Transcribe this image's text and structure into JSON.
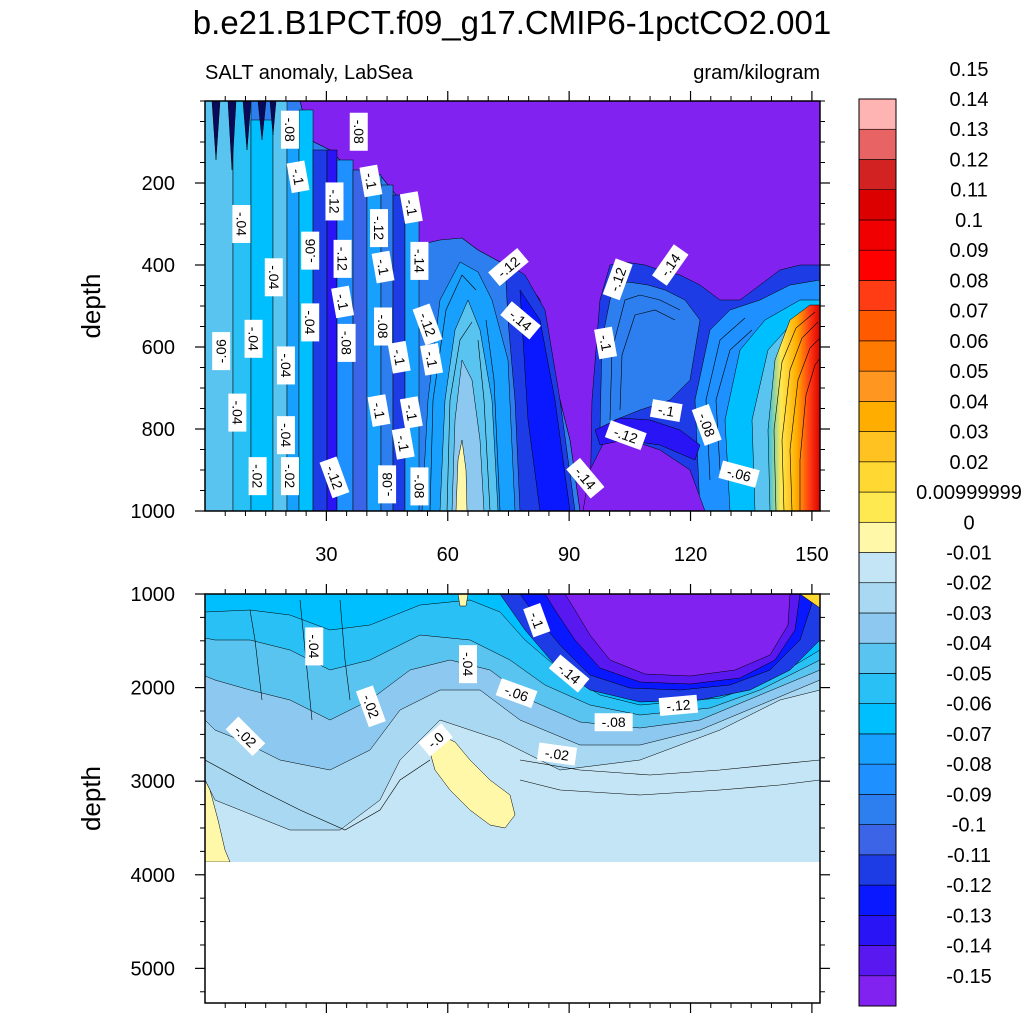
{
  "chart_data": {
    "type": "contour",
    "title": "b.e21.B1PCT.f09_g17.CMIP6-1pctCO2.001",
    "subtitle_left": "SALT anomaly, LabSea",
    "subtitle_right": "gram/kilogram",
    "xlim": [
      0,
      152
    ],
    "x_ticks": [
      30,
      60,
      90,
      120,
      150
    ],
    "x_tick_labels": [
      "30",
      "60",
      "90",
      "120",
      "150"
    ],
    "colors": {
      "frame": "#000000",
      "min_fill": "#8222f0"
    },
    "panels": [
      {
        "name": "upper",
        "ylabel": "depth",
        "ylim": [
          0,
          1000
        ],
        "y_ticks": [
          200,
          400,
          600,
          800,
          1000
        ],
        "y_tick_labels": [
          "200",
          "400",
          "600",
          "800",
          "1000"
        ],
        "show_x_labels": true,
        "contour_labels": [
          {
            "x": 21,
            "y": 70,
            "text": "-.08",
            "rot": 90
          },
          {
            "x": 38,
            "y": 75,
            "text": "-.08",
            "rot": 90
          },
          {
            "x": 23,
            "y": 185,
            "text": "-.1",
            "rot": 80
          },
          {
            "x": 41,
            "y": 195,
            "text": "-.1",
            "rot": 80
          },
          {
            "x": 32,
            "y": 245,
            "text": "-.12",
            "rot": 90
          },
          {
            "x": 51,
            "y": 260,
            "text": "-.1",
            "rot": 80
          },
          {
            "x": 9,
            "y": 300,
            "text": "-.04",
            "rot": 90
          },
          {
            "x": 43,
            "y": 310,
            "text": "-.12",
            "rot": 90
          },
          {
            "x": 26,
            "y": 365,
            "text": "-.06",
            "rot": -90
          },
          {
            "x": 34,
            "y": 385,
            "text": "-.12",
            "rot": 90
          },
          {
            "x": 53,
            "y": 390,
            "text": "-.14",
            "rot": 90
          },
          {
            "x": 44,
            "y": 405,
            "text": "-.1",
            "rot": 80
          },
          {
            "x": 75,
            "y": 405,
            "text": "-.12",
            "rot": -40
          },
          {
            "x": 115,
            "y": 400,
            "text": "-.14",
            "rot": -55
          },
          {
            "x": 17,
            "y": 430,
            "text": "-.04",
            "rot": 90
          },
          {
            "x": 102,
            "y": 435,
            "text": "-.12",
            "rot": -70
          },
          {
            "x": 34,
            "y": 490,
            "text": "-.1",
            "rot": 80
          },
          {
            "x": 26,
            "y": 540,
            "text": "-.04",
            "rot": 90
          },
          {
            "x": 44,
            "y": 550,
            "text": "-.08",
            "rot": 90
          },
          {
            "x": 55,
            "y": 545,
            "text": "-.12",
            "rot": 70
          },
          {
            "x": 78,
            "y": 535,
            "text": "-.14",
            "rot": 40
          },
          {
            "x": 12,
            "y": 580,
            "text": "-.04",
            "rot": 90
          },
          {
            "x": 35,
            "y": 590,
            "text": "-.08",
            "rot": 90
          },
          {
            "x": 99,
            "y": 590,
            "text": "-.1",
            "rot": 80
          },
          {
            "x": 4,
            "y": 610,
            "text": "-.06",
            "rot": -90
          },
          {
            "x": 48,
            "y": 625,
            "text": "-.1",
            "rot": 80
          },
          {
            "x": 56,
            "y": 630,
            "text": "-.1",
            "rot": 80
          },
          {
            "x": 20,
            "y": 645,
            "text": "-.04",
            "rot": 90
          },
          {
            "x": 8,
            "y": 760,
            "text": "-.04",
            "rot": 90
          },
          {
            "x": 43,
            "y": 755,
            "text": "-.1",
            "rot": 80
          },
          {
            "x": 51,
            "y": 760,
            "text": "-.1",
            "rot": 80
          },
          {
            "x": 114,
            "y": 755,
            "text": "-.1",
            "rot": 10
          },
          {
            "x": 124,
            "y": 790,
            "text": "-.08",
            "rot": 70
          },
          {
            "x": 20,
            "y": 815,
            "text": "-.04",
            "rot": 90
          },
          {
            "x": 104,
            "y": 815,
            "text": "-.12",
            "rot": 20
          },
          {
            "x": 49,
            "y": 835,
            "text": "-.1",
            "rot": 80
          },
          {
            "x": 132,
            "y": 910,
            "text": "-.06",
            "rot": 15
          },
          {
            "x": 13,
            "y": 915,
            "text": "-.02",
            "rot": 90
          },
          {
            "x": 21,
            "y": 915,
            "text": "-.02",
            "rot": 90
          },
          {
            "x": 32,
            "y": 918,
            "text": "-.12",
            "rot": 70
          },
          {
            "x": 45,
            "y": 935,
            "text": "-.08",
            "rot": -90
          },
          {
            "x": 53,
            "y": 940,
            "text": "-.08",
            "rot": 90
          },
          {
            "x": 94,
            "y": 920,
            "text": "-.14",
            "rot": 50
          }
        ]
      },
      {
        "name": "lower",
        "ylabel": "depth",
        "ylim": [
          1000,
          5370
        ],
        "y_ticks": [
          1000,
          2000,
          3000,
          4000,
          5000
        ],
        "y_tick_labels": [
          "1000",
          "2000",
          "3000",
          "4000",
          "5000"
        ],
        "show_x_labels": false,
        "data_bottom_depth": 3870,
        "contour_labels": [
          {
            "x": 27,
            "y": 1560,
            "text": "-.04",
            "rot": 90
          },
          {
            "x": 82,
            "y": 1280,
            "text": "-.1",
            "rot": 70
          },
          {
            "x": 65,
            "y": 1750,
            "text": "-.04",
            "rot": 90
          },
          {
            "x": 90,
            "y": 1850,
            "text": "-.14",
            "rot": 40
          },
          {
            "x": 77,
            "y": 2060,
            "text": "-.06",
            "rot": 20
          },
          {
            "x": 41,
            "y": 2200,
            "text": "-.02",
            "rot": 70
          },
          {
            "x": 117,
            "y": 2190,
            "text": "-.12",
            "rot": -5
          },
          {
            "x": 101,
            "y": 2370,
            "text": "-.08",
            "rot": 0
          },
          {
            "x": 10,
            "y": 2520,
            "text": "-.02",
            "rot": 45
          },
          {
            "x": 57,
            "y": 2560,
            "text": "-.0",
            "rot": -40
          },
          {
            "x": 87,
            "y": 2710,
            "text": "-.02",
            "rot": 8
          }
        ]
      }
    ],
    "colorbar": {
      "colors": [
        "#8222f0",
        "#5a18f0",
        "#2814f5",
        "#0a18ff",
        "#1e3ce6",
        "#3c64e6",
        "#2d7fef",
        "#1e90ff",
        "#18a0ff",
        "#00bfff",
        "#28c0f5",
        "#5ac4f0",
        "#8cc8f0",
        "#a8d8f2",
        "#c4e5f5",
        "#fff8a8",
        "#ffe950",
        "#ffd832",
        "#ffc220",
        "#ffae00",
        "#ff9620",
        "#ff7a00",
        "#ff5a00",
        "#ff3c14",
        "#ff0000",
        "#f00000",
        "#dc0000",
        "#d22222",
        "#e86464",
        "#ffb4b4"
      ],
      "labels": [
        "-0.15",
        "-0.14",
        "-0.13",
        "-0.12",
        "-0.11",
        "-0.1",
        "-0.09",
        "-0.08",
        "-0.07",
        "-0.06",
        "-0.05",
        "-0.04",
        "-0.03",
        "-0.02",
        "-0.01",
        "0",
        "0.00999999",
        "0.02",
        "0.03",
        "0.04",
        "0.05",
        "0.06",
        "0.07",
        "0.08",
        "0.09",
        "0.1",
        "0.11",
        "0.12",
        "0.13",
        "0.14",
        "0.15"
      ]
    }
  }
}
